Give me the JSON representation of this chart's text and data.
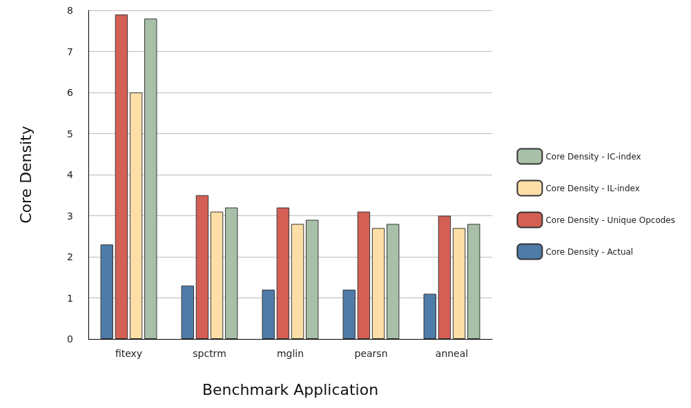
{
  "chart_data": {
    "type": "bar",
    "xlabel": "Benchmark Application",
    "ylabel": "Core Density",
    "categories": [
      "fitexy",
      "spctrm",
      "mglin",
      "pearsn",
      "anneal"
    ],
    "series": [
      {
        "name": "Core Density - Actual",
        "color": "#4f7ba8",
        "values": [
          2.3,
          1.3,
          1.2,
          1.2,
          1.1
        ]
      },
      {
        "name": "Core Density - Unique Opcodes",
        "color": "#d45f55",
        "values": [
          7.9,
          3.5,
          3.2,
          3.1,
          3.0
        ]
      },
      {
        "name": "Core Density - IL-index",
        "color": "#fddea6",
        "values": [
          6.0,
          3.1,
          2.8,
          2.7,
          2.7
        ]
      },
      {
        "name": "Core Density - IC-index",
        "color": "#a8bfa8",
        "values": [
          7.8,
          3.2,
          2.9,
          2.8,
          2.8
        ]
      }
    ],
    "ylim": [
      0,
      8
    ],
    "yticks": [
      0,
      1,
      2,
      3,
      4,
      5,
      6,
      7,
      8
    ],
    "grid": "y",
    "legend": "right"
  }
}
